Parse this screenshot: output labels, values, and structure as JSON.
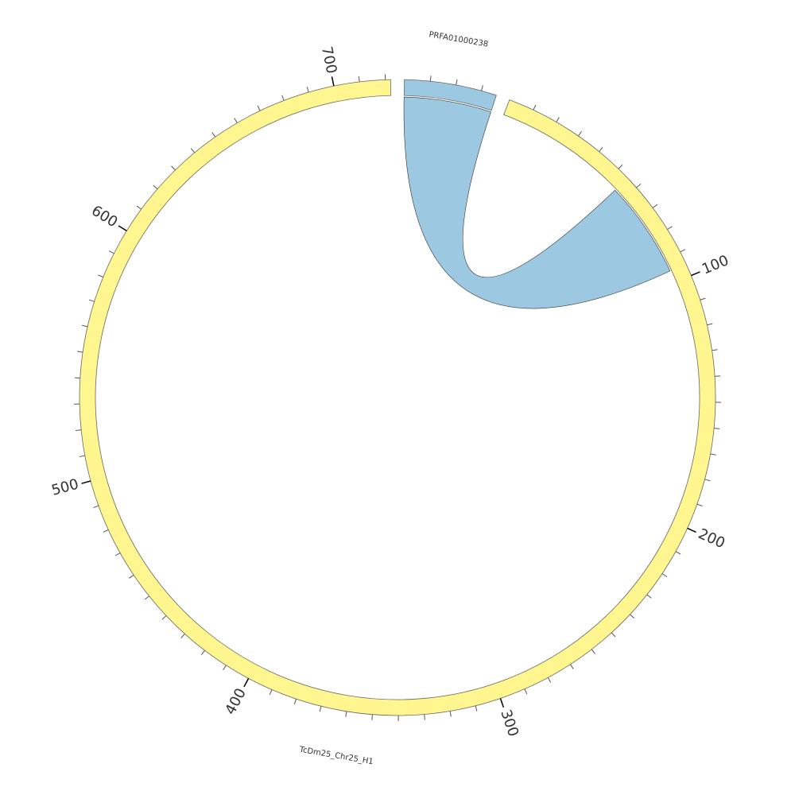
{
  "chart_data": {
    "type": "chord",
    "segments": [
      {
        "name": "PRFA01000238",
        "length": 36,
        "color": "#9dc8e2",
        "ticks": [],
        "minor_tick_step": 10
      },
      {
        "name": "TcDm25_Chr25_H1",
        "length": 722,
        "color": "#fff68f",
        "ticks": [
          100,
          200,
          300,
          400,
          500,
          600,
          700
        ],
        "minor_tick_step": 10
      }
    ],
    "links": [
      {
        "source": 0,
        "source_range": [
          0,
          36
        ],
        "target": 1,
        "target_range": [
          95,
          55
        ],
        "color": "#9dc8e2"
      }
    ]
  }
}
